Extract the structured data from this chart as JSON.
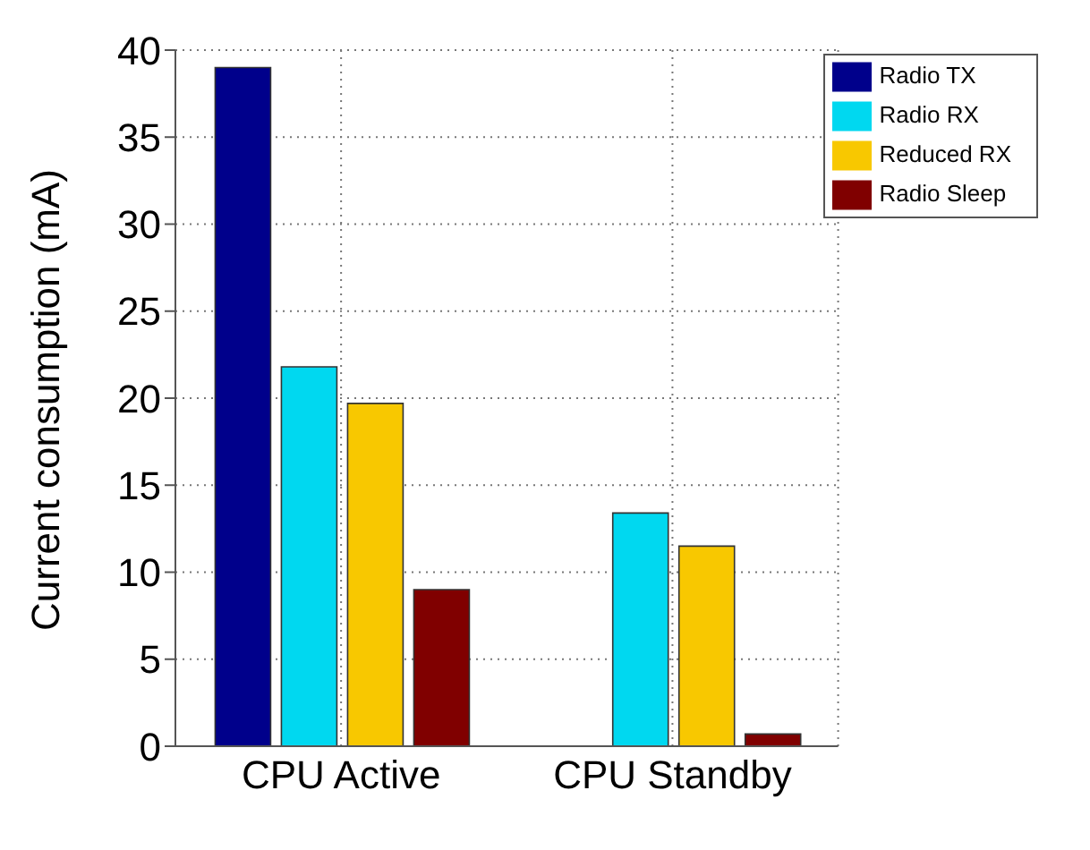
{
  "chart_data": {
    "type": "bar",
    "ylabel": "Current consumption (mA)",
    "categories": [
      "CPU Active",
      "CPU Standby"
    ],
    "series": [
      {
        "name": "Radio TX",
        "color": "#00008b",
        "values": [
          39,
          null
        ]
      },
      {
        "name": "Radio RX",
        "color": "#00d8f0",
        "values": [
          21.8,
          13.4
        ]
      },
      {
        "name": "Reduced RX",
        "color": "#f8c800",
        "values": [
          19.7,
          11.5
        ]
      },
      {
        "name": "Radio Sleep",
        "color": "#800000",
        "values": [
          9,
          0.7
        ]
      }
    ],
    "ylim": [
      0,
      40
    ],
    "yticks": [
      0,
      5,
      10,
      15,
      20,
      25,
      30,
      35,
      40
    ],
    "grid": true,
    "legend": "top right"
  }
}
